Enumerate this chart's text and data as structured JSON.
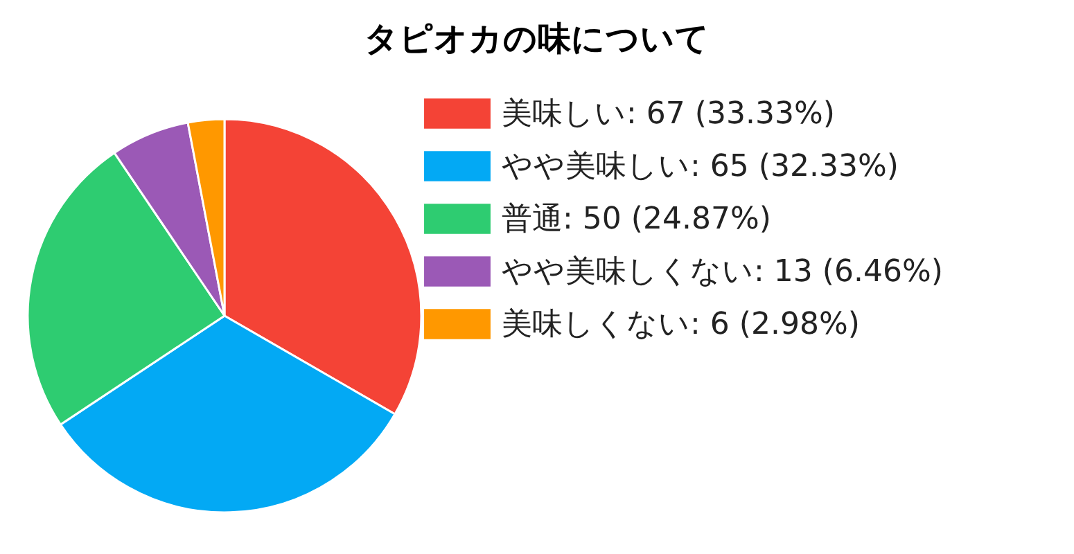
{
  "chart_data": {
    "type": "pie",
    "title": "タピオカの味について",
    "categories": [
      "美味しい: 67 (33.33%)",
      "やや美味しい: 65 (32.33%)",
      "普通: 50 (24.87%)",
      "やや美味しくない: 13 (6.46%)",
      "美味しくない: 6 (2.98%)"
    ],
    "values": [
      67,
      65,
      50,
      13,
      6
    ],
    "colors": [
      "#f44336",
      "#03a9f4",
      "#2ecc71",
      "#9b59b6",
      "#ff9800"
    ],
    "legend": "right"
  }
}
